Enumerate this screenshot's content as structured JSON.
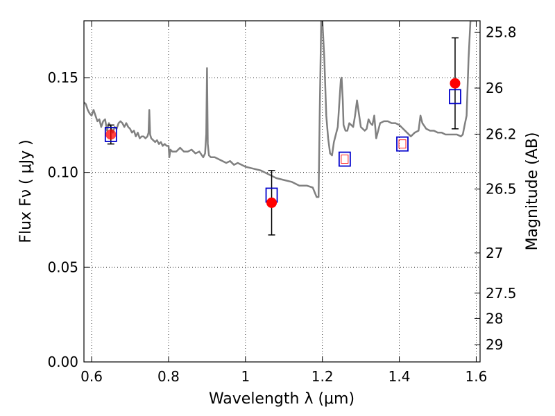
{
  "chart_data": {
    "type": "scatter",
    "title": "",
    "xlabel": "Wavelength  λ (μm)",
    "ylabel": "Flux  Fν  ( μJy )",
    "ylabel_right": "Magnitude (AB)",
    "xlim": [
      0.58,
      1.61
    ],
    "ylim": [
      0.0,
      0.18
    ],
    "grid": true,
    "x_ticks": [
      {
        "value": 0.6,
        "label": "0.6"
      },
      {
        "value": 0.8,
        "label": "0.8"
      },
      {
        "value": 1.0,
        "label": "1"
      },
      {
        "value": 1.2,
        "label": "1.2"
      },
      {
        "value": 1.4,
        "label": "1.4"
      },
      {
        "value": 1.6,
        "label": "1.6"
      }
    ],
    "y_ticks": [
      {
        "value": 0.0,
        "label": "0.00"
      },
      {
        "value": 0.05,
        "label": "0.05"
      },
      {
        "value": 0.1,
        "label": "0.10"
      },
      {
        "value": 0.15,
        "label": "0.15"
      }
    ],
    "right_axis_ticks": [
      {
        "label": "25.8",
        "flux": 0.174
      },
      {
        "label": "26",
        "flux": 0.1445
      },
      {
        "label": "26.2",
        "flux": 0.1202
      },
      {
        "label": "26.5",
        "flux": 0.0912
      },
      {
        "label": "27",
        "flux": 0.0575
      },
      {
        "label": "27.5",
        "flux": 0.0363
      },
      {
        "label": "28",
        "flux": 0.0229
      },
      {
        "label": "29",
        "flux": 0.0091
      }
    ],
    "series": [
      {
        "kind": "model_spectrum",
        "color": "#808080",
        "x": [
          0.58,
          0.585,
          0.59,
          0.595,
          0.6,
          0.605,
          0.61,
          0.615,
          0.62,
          0.625,
          0.63,
          0.635,
          0.64,
          0.645,
          0.65,
          0.655,
          0.66,
          0.665,
          0.67,
          0.675,
          0.68,
          0.685,
          0.69,
          0.695,
          0.7,
          0.705,
          0.71,
          0.715,
          0.72,
          0.725,
          0.73,
          0.735,
          0.74,
          0.745,
          0.748,
          0.75,
          0.752,
          0.755,
          0.76,
          0.765,
          0.77,
          0.775,
          0.78,
          0.785,
          0.79,
          0.795,
          0.8,
          0.802,
          0.805,
          0.81,
          0.82,
          0.83,
          0.84,
          0.85,
          0.86,
          0.87,
          0.88,
          0.89,
          0.895,
          0.898,
          0.9,
          0.902,
          0.905,
          0.91,
          0.92,
          0.93,
          0.94,
          0.95,
          0.96,
          0.97,
          0.98,
          0.99,
          1.0,
          1.02,
          1.04,
          1.06,
          1.08,
          1.1,
          1.12,
          1.14,
          1.16,
          1.175,
          1.185,
          1.19,
          1.193,
          1.197,
          1.2,
          1.205,
          1.21,
          1.215,
          1.22,
          1.225,
          1.23,
          1.24,
          1.245,
          1.248,
          1.25,
          1.253,
          1.255,
          1.26,
          1.265,
          1.27,
          1.275,
          1.28,
          1.285,
          1.29,
          1.3,
          1.31,
          1.315,
          1.32,
          1.325,
          1.33,
          1.335,
          1.34,
          1.35,
          1.36,
          1.37,
          1.38,
          1.39,
          1.4,
          1.41,
          1.42,
          1.43,
          1.44,
          1.45,
          1.455,
          1.46,
          1.47,
          1.48,
          1.49,
          1.5,
          1.51,
          1.52,
          1.53,
          1.54,
          1.55,
          1.56,
          1.565,
          1.57,
          1.575,
          1.58,
          1.585,
          1.59,
          1.595,
          1.6
        ],
        "y": [
          0.137,
          0.136,
          0.133,
          0.131,
          0.13,
          0.133,
          0.13,
          0.127,
          0.128,
          0.124,
          0.127,
          0.128,
          0.122,
          0.126,
          0.124,
          0.121,
          0.124,
          0.123,
          0.126,
          0.127,
          0.126,
          0.124,
          0.126,
          0.124,
          0.123,
          0.121,
          0.122,
          0.119,
          0.121,
          0.118,
          0.119,
          0.119,
          0.118,
          0.119,
          0.121,
          0.133,
          0.12,
          0.118,
          0.117,
          0.116,
          0.117,
          0.115,
          0.116,
          0.114,
          0.115,
          0.114,
          0.114,
          0.108,
          0.112,
          0.111,
          0.111,
          0.113,
          0.111,
          0.111,
          0.112,
          0.11,
          0.111,
          0.108,
          0.11,
          0.12,
          0.155,
          0.115,
          0.109,
          0.108,
          0.108,
          0.107,
          0.106,
          0.105,
          0.106,
          0.104,
          0.105,
          0.104,
          0.103,
          0.102,
          0.101,
          0.099,
          0.097,
          0.096,
          0.095,
          0.093,
          0.093,
          0.092,
          0.087,
          0.087,
          0.13,
          0.18,
          0.18,
          0.16,
          0.13,
          0.118,
          0.11,
          0.109,
          0.116,
          0.124,
          0.14,
          0.149,
          0.15,
          0.138,
          0.125,
          0.122,
          0.122,
          0.126,
          0.125,
          0.124,
          0.13,
          0.138,
          0.124,
          0.122,
          0.123,
          0.128,
          0.126,
          0.125,
          0.13,
          0.118,
          0.126,
          0.127,
          0.127,
          0.126,
          0.126,
          0.125,
          0.123,
          0.121,
          0.119,
          0.121,
          0.122,
          0.13,
          0.126,
          0.123,
          0.122,
          0.122,
          0.121,
          0.121,
          0.12,
          0.12,
          0.12,
          0.12,
          0.119,
          0.12,
          0.125,
          0.13,
          0.16,
          0.18,
          0.18,
          0.18,
          0.18
        ]
      },
      {
        "kind": "observed",
        "marker": "filled-circle",
        "color": "#ff0000",
        "points": [
          {
            "x": 0.65,
            "y": 0.12,
            "yerr_low": 0.115,
            "yerr_high": 0.125
          },
          {
            "x": 1.068,
            "y": 0.084,
            "yerr_low": 0.067,
            "yerr_high": 0.101
          },
          {
            "x": 1.545,
            "y": 0.147,
            "yerr_low": 0.123,
            "yerr_high": 0.171
          }
        ]
      },
      {
        "kind": "model_band",
        "marker": "open-square",
        "color": "#0000cc",
        "points": [
          {
            "x": 0.65,
            "y": 0.12
          },
          {
            "x": 1.068,
            "y": 0.088
          },
          {
            "x": 1.258,
            "y": 0.107
          },
          {
            "x": 1.408,
            "y": 0.115
          },
          {
            "x": 1.545,
            "y": 0.14
          }
        ]
      },
      {
        "kind": "model_band_inner",
        "marker": "open-square-small",
        "color": "#ff0000",
        "points": [
          {
            "x": 1.258,
            "y": 0.107
          },
          {
            "x": 1.408,
            "y": 0.115
          }
        ]
      }
    ]
  }
}
